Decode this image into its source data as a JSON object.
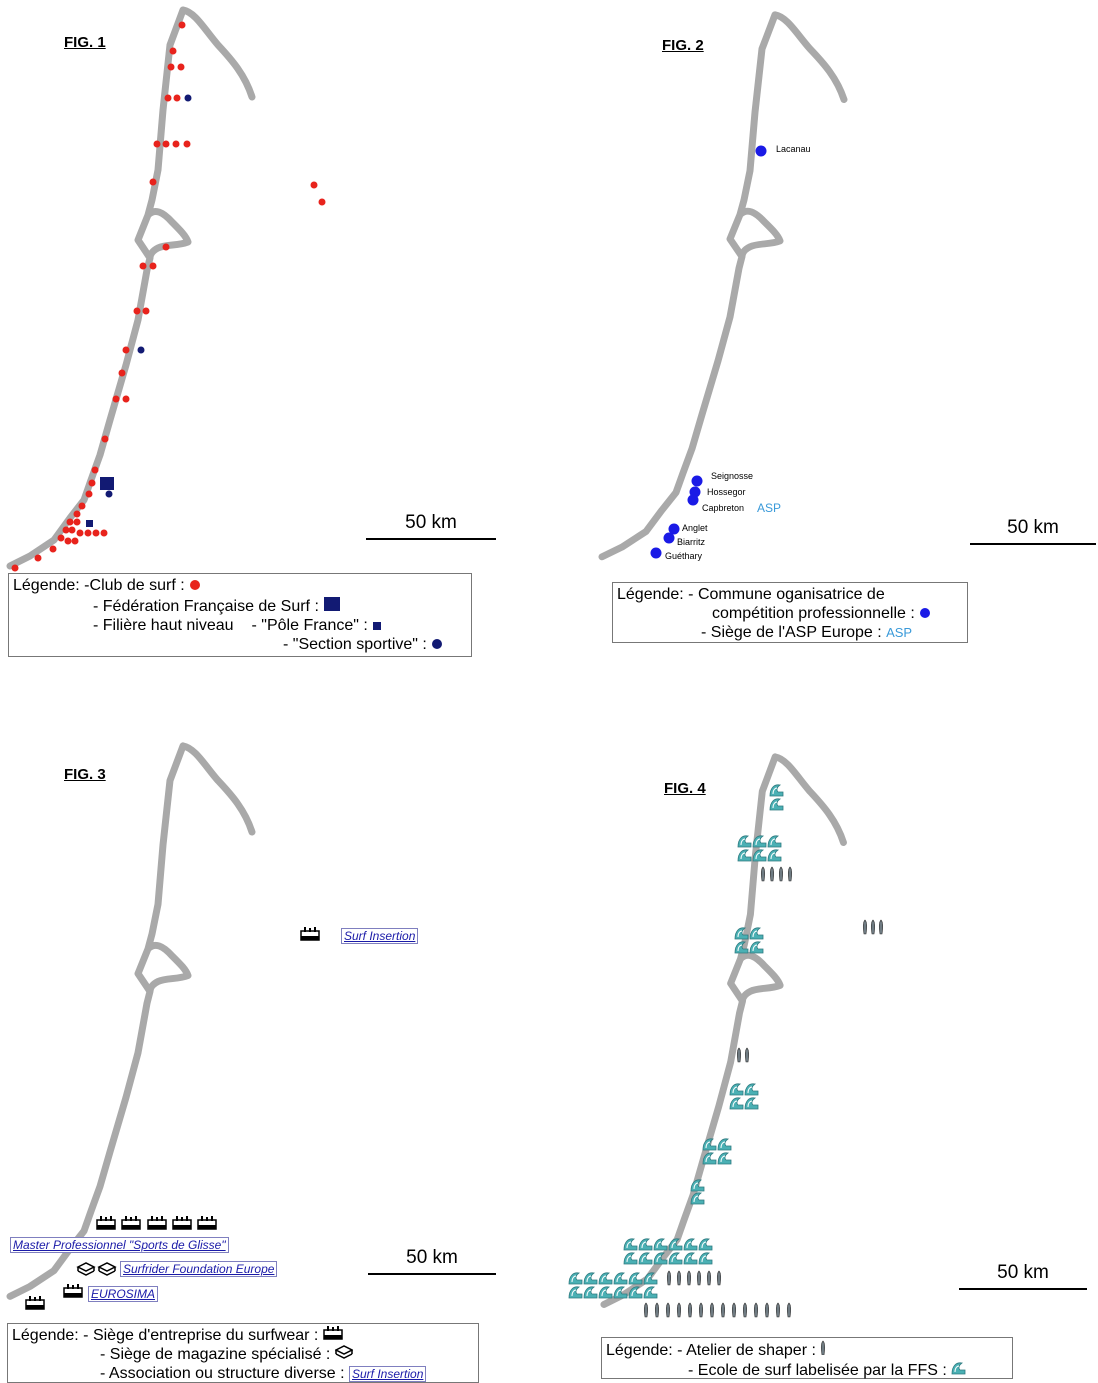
{
  "fig1": {
    "title": "FIG. 1",
    "scale_label": "50 km",
    "legend": {
      "row1": "Légende:  -Club de surf : ",
      "row2": "- Fédération Française de Surf : ",
      "row3a": "- Filière haut niveau",
      "row3b": "- \"Pôle France\" : ",
      "row4": "- \"Section sportive\" : "
    },
    "colors": {
      "club": "#e8231c",
      "federation": "#121a73",
      "coast": "#a9a9a9"
    }
  },
  "fig2": {
    "title": "FIG. 2",
    "scale_label": "50 km",
    "towns": [
      "Lacanau",
      "Seignosse",
      "Hossegor",
      "Capbreton",
      "Anglet",
      "Biarritz",
      "Guéthary"
    ],
    "asp_mark": "ASP",
    "legend": {
      "row1": "Légende: - Commune oganisatrice de",
      "row2": "compétition professionnelle : ",
      "row3": "- Siège de l'ASP Europe : ",
      "row3_mark": "ASP"
    },
    "colors": {
      "commune": "#1a1ae6",
      "asp": "#3a9ad9"
    }
  },
  "fig3": {
    "title": "FIG. 3",
    "scale_label": "50 km",
    "labels": {
      "surf_insertion": "Surf Insertion",
      "master": "Master Professionnel \"Sports de Glisse\"",
      "surfrider": "Surfrider Foundation Europe",
      "eurosima": "EUROSIMA"
    },
    "legend": {
      "row1": "Légende: - Siège d'entreprise du surfwear : ",
      "row2": "- Siège de magazine spécialisé : ",
      "row3": "- Association ou structure diverse : ",
      "row3_mark": "Surf Insertion"
    },
    "icons": [
      "factory-icon",
      "magazine-icon"
    ]
  },
  "fig4": {
    "title": "FIG. 4",
    "scale_label": "50 km",
    "legend": {
      "row1": "Légende: - Atelier de shaper : ",
      "row2": "- Ecole de surf labelisée par la FFS : "
    },
    "icons": [
      "surfboard-icon",
      "wave-icon"
    ],
    "colors": {
      "wave": "#4ab0b4"
    }
  }
}
